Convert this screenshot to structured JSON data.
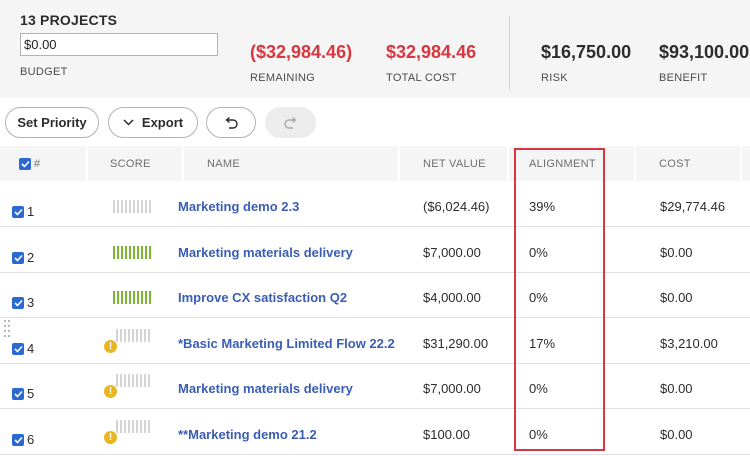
{
  "summary": {
    "title": "13 PROJECTS",
    "budget_value": "$0.00",
    "budget_label": "BUDGET",
    "remaining_value": "($32,984.46)",
    "remaining_label": "REMAINING",
    "total_cost_value": "$32,984.46",
    "total_cost_label": "TOTAL COST",
    "risk_value": "$16,750.00",
    "risk_label": "RISK",
    "benefit_value": "$93,100.00",
    "benefit_label": "BENEFIT"
  },
  "toolbar": {
    "set_priority_label": "Set Priority",
    "export_label": "Export",
    "undo_icon": "undo-icon",
    "redo_icon": "redo-icon"
  },
  "table": {
    "headers": {
      "num": "#",
      "score": "SCORE",
      "name": "NAME",
      "net_value": "NET VALUE",
      "alignment": "ALIGNMENT",
      "cost": "COST"
    },
    "rows": [
      {
        "num": "1",
        "score_filled": 0,
        "warning": false,
        "name": "Marketing demo 2.3",
        "net_value": "($6,024.46)",
        "alignment": "39%",
        "cost": "$29,774.46"
      },
      {
        "num": "2",
        "score_filled": 10,
        "warning": false,
        "name": "Marketing materials delivery",
        "net_value": "$7,000.00",
        "alignment": "0%",
        "cost": "$0.00"
      },
      {
        "num": "3",
        "score_filled": 10,
        "warning": false,
        "name": "Improve CX satisfaction Q2",
        "net_value": "$4,000.00",
        "alignment": "0%",
        "cost": "$0.00"
      },
      {
        "num": "4",
        "score_filled": 0,
        "warning": true,
        "name": "*Basic Marketing Limited Flow 22.2",
        "net_value": "$31,290.00",
        "alignment": "17%",
        "cost": "$3,210.00"
      },
      {
        "num": "5",
        "score_filled": 0,
        "warning": true,
        "name": "Marketing materials delivery",
        "net_value": "$7,000.00",
        "alignment": "0%",
        "cost": "$0.00"
      },
      {
        "num": "6",
        "score_filled": 0,
        "warning": true,
        "name": "**Marketing demo 21.2",
        "net_value": "$100.00",
        "alignment": "0%",
        "cost": "$0.00"
      }
    ]
  },
  "colors": {
    "negative": "#d7373f",
    "link": "#3a5db5",
    "checkbox": "#2b69d1",
    "score_on": "#7ab631",
    "warning": "#e8b623",
    "highlight": "#d7373f"
  }
}
